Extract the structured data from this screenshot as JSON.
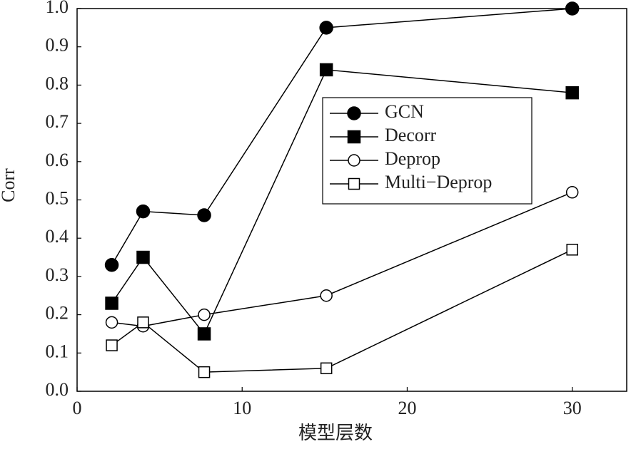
{
  "chart_data": {
    "type": "line",
    "x_label": "模型层数",
    "y_label": "Corr",
    "x": [
      2.1,
      4,
      7.7,
      15.1,
      30
    ],
    "series": [
      {
        "name": "GCN",
        "color": "#000000",
        "marker": "filled-circle",
        "values": [
          0.33,
          0.47,
          0.46,
          0.95,
          1.0
        ]
      },
      {
        "name": "Decorr",
        "color": "#000000",
        "marker": "filled-square",
        "values": [
          0.23,
          0.35,
          0.15,
          0.84,
          0.78
        ]
      },
      {
        "name": "Deprop",
        "color": "#000000",
        "marker": "open-circle",
        "values": [
          0.18,
          0.17,
          0.2,
          0.25,
          0.52
        ]
      },
      {
        "name": "Multi−Deprop",
        "color": "#000000",
        "marker": "open-square",
        "values": [
          0.12,
          0.18,
          0.05,
          0.06,
          0.37
        ]
      }
    ],
    "xlim": [
      0,
      33.3
    ],
    "xticks": [
      0,
      10,
      20,
      30
    ],
    "ylim": [
      0,
      1
    ],
    "yticks": [
      {
        "value": 0,
        "label": "0.0"
      },
      0.1,
      0.2,
      0.3,
      0.4,
      0.5,
      0.6,
      0.7,
      0.8,
      0.9,
      {
        "value": 1,
        "label": "1.0"
      }
    ],
    "legend": "upper-right",
    "grid": false
  }
}
